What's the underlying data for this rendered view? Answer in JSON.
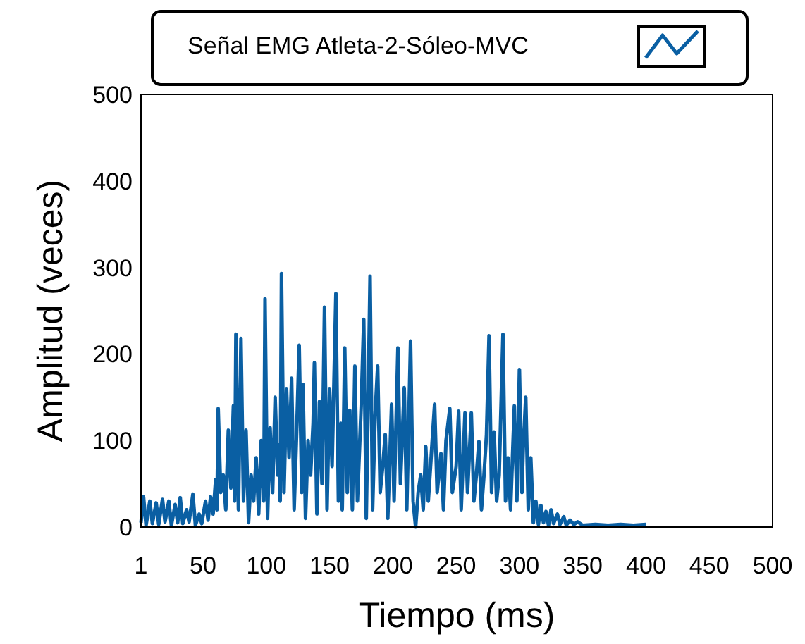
{
  "chart_data": {
    "type": "line",
    "xlabel": "Tiempo (ms)",
    "ylabel": "Amplitud (veces)",
    "xlim": [
      1,
      500
    ],
    "xticks": [
      1,
      50,
      100,
      150,
      200,
      250,
      300,
      350,
      400,
      450,
      500
    ],
    "ylim": [
      0,
      500
    ],
    "yticks": [
      0,
      100,
      200,
      300,
      400,
      500
    ],
    "grid": false,
    "legend": "top",
    "marker": "none",
    "line_style": "solid",
    "series": [
      {
        "name": "Señal EMG Atleta-2-Sóleo-MVC",
        "color": "#0a5fa3",
        "x": [
          1,
          3,
          5,
          8,
          10,
          13,
          15,
          18,
          20,
          23,
          25,
          28,
          30,
          32,
          34,
          37,
          39,
          42,
          44,
          47,
          49,
          52,
          54,
          56,
          58,
          60,
          61,
          62,
          64,
          66,
          68,
          70,
          72,
          74,
          75,
          76,
          78,
          80,
          82,
          84,
          86,
          88,
          90,
          92,
          94,
          96,
          98,
          99,
          101,
          103,
          105,
          107,
          109,
          110,
          111,
          112,
          114,
          116,
          118,
          120,
          122,
          124,
          126,
          128,
          129,
          131,
          133,
          135,
          137,
          138,
          140,
          142,
          144,
          146,
          148,
          150,
          152,
          155,
          157,
          159,
          160,
          162,
          164,
          166,
          168,
          170,
          172,
          175,
          177,
          179,
          182,
          184,
          186,
          188,
          190,
          192,
          194,
          196,
          199,
          201,
          204,
          206,
          209,
          211,
          214,
          216,
          218,
          220,
          222,
          224,
          226,
          228,
          230,
          233,
          235,
          238,
          240,
          242,
          245,
          247,
          250,
          252,
          254,
          257,
          259,
          262,
          264,
          266,
          268,
          270,
          272,
          274,
          276,
          278,
          280,
          282,
          284,
          287,
          289,
          291,
          293,
          296,
          298,
          300,
          302,
          303,
          305,
          307,
          309,
          311,
          313,
          315,
          317,
          319,
          321,
          323,
          325,
          327,
          330,
          332,
          335,
          337,
          340,
          343,
          346,
          350,
          360,
          370,
          380,
          390,
          400
        ],
        "values": [
          5,
          35,
          2,
          30,
          4,
          28,
          3,
          32,
          6,
          30,
          2,
          26,
          5,
          34,
          4,
          20,
          6,
          38,
          2,
          15,
          4,
          30,
          8,
          35,
          15,
          55,
          20,
          137,
          40,
          60,
          20,
          112,
          45,
          140,
          30,
          223,
          20,
          218,
          30,
          112,
          5,
          60,
          30,
          80,
          15,
          100,
          30,
          264,
          10,
          115,
          40,
          150,
          60,
          95,
          30,
          293,
          40,
          160,
          80,
          172,
          20,
          110,
          210,
          40,
          165,
          10,
          100,
          60,
          120,
          190,
          15,
          145,
          50,
          254,
          20,
          160,
          70,
          270,
          30,
          120,
          20,
          207,
          40,
          135,
          20,
          186,
          30,
          140,
          240,
          10,
          290,
          20,
          130,
          186,
          40,
          70,
          107,
          10,
          142,
          30,
          207,
          50,
          161,
          20,
          215,
          30,
          0,
          40,
          60,
          20,
          93,
          30,
          75,
          142,
          40,
          85,
          20,
          100,
          137,
          40,
          70,
          134,
          20,
          132,
          40,
          132,
          30,
          60,
          99,
          20,
          60,
          107,
          221,
          40,
          110,
          30,
          60,
          223,
          30,
          80,
          20,
          140,
          30,
          182,
          40,
          90,
          150,
          20,
          80,
          5,
          30,
          3,
          25,
          5,
          18,
          2,
          20,
          4,
          15,
          3,
          12,
          2,
          8,
          3,
          6,
          2,
          3,
          2,
          3,
          2,
          3
        ]
      }
    ]
  }
}
